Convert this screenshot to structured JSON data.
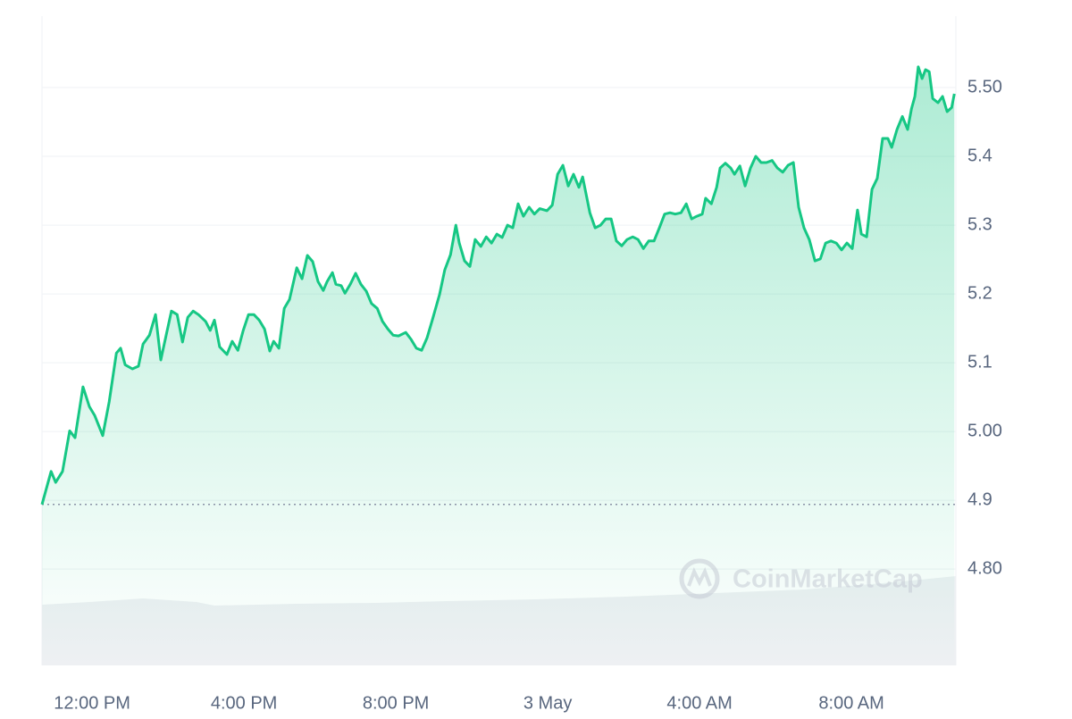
{
  "chart_data": {
    "type": "area",
    "watermark": "CoinMarketCap",
    "color": "#16c784",
    "grid": true,
    "xlim": [
      10.68,
      34.75
    ],
    "ylim": [
      4.66,
      5.6
    ],
    "xticks": [
      {
        "value": 12,
        "label": "12:00 PM"
      },
      {
        "value": 16,
        "label": "4:00 PM"
      },
      {
        "value": 20,
        "label": "8:00 PM"
      },
      {
        "value": 24,
        "label": "3 May"
      },
      {
        "value": 28,
        "label": "4:00 AM"
      },
      {
        "value": 32,
        "label": "8:00 AM"
      }
    ],
    "yticks": [
      {
        "value": 4.8,
        "label": "4.80"
      },
      4.9,
      {
        "value": 5,
        "label": "5.00"
      },
      5.1,
      5.2,
      5.3,
      5.4,
      {
        "value": 5.5,
        "label": "5.50"
      }
    ],
    "x": [
      10.68,
      10.92,
      11.04,
      11.22,
      11.41,
      11.55,
      11.76,
      11.93,
      12.07,
      12.28,
      12.45,
      12.64,
      12.75,
      12.87,
      13.06,
      13.22,
      13.34,
      13.51,
      13.67,
      13.81,
      13.95,
      14.09,
      14.24,
      14.38,
      14.52,
      14.66,
      14.8,
      14.99,
      15.11,
      15.22,
      15.36,
      15.55,
      15.69,
      15.84,
      15.98,
      16.12,
      16.26,
      16.4,
      16.54,
      16.68,
      16.78,
      16.92,
      17.06,
      17.2,
      17.39,
      17.53,
      17.67,
      17.81,
      17.95,
      18.09,
      18.19,
      18.33,
      18.42,
      18.56,
      18.66,
      18.8,
      18.94,
      19.08,
      19.22,
      19.36,
      19.51,
      19.65,
      19.79,
      19.93,
      20.07,
      20.26,
      20.4,
      20.54,
      20.68,
      20.82,
      20.96,
      21.15,
      21.29,
      21.44,
      21.58,
      21.67,
      21.81,
      21.95,
      22.09,
      22.24,
      22.38,
      22.52,
      22.66,
      22.8,
      22.94,
      23.08,
      23.22,
      23.36,
      23.51,
      23.65,
      23.79,
      23.98,
      24.12,
      24.26,
      24.4,
      24.54,
      24.68,
      24.82,
      24.92,
      25.11,
      25.25,
      25.39,
      25.53,
      25.67,
      25.81,
      25.95,
      26.09,
      26.24,
      26.38,
      26.52,
      26.66,
      26.8,
      26.94,
      27.08,
      27.22,
      27.36,
      27.51,
      27.65,
      27.79,
      27.93,
      28.07,
      28.16,
      28.31,
      28.45,
      28.54,
      28.68,
      28.82,
      28.92,
      29.06,
      29.2,
      29.34,
      29.48,
      29.62,
      29.76,
      29.91,
      30.05,
      30.19,
      30.33,
      30.47,
      30.61,
      30.75,
      30.89,
      31.04,
      31.18,
      31.32,
      31.46,
      31.6,
      31.74,
      31.88,
      32.02,
      32.16,
      32.26,
      32.4,
      32.54,
      32.68,
      32.82,
      32.96,
      33.06,
      33.2,
      33.34,
      33.48,
      33.58,
      33.67,
      33.76,
      33.86,
      33.95,
      34.05,
      34.14,
      34.28,
      34.4,
      34.52,
      34.64,
      34.71
    ],
    "values": [
      4.894,
      4.942,
      4.926,
      4.942,
      5.001,
      4.991,
      5.065,
      5.036,
      5.023,
      4.994,
      5.043,
      5.114,
      5.121,
      5.097,
      5.091,
      5.095,
      5.127,
      5.14,
      5.17,
      5.104,
      5.14,
      5.175,
      5.17,
      5.13,
      5.166,
      5.175,
      5.17,
      5.16,
      5.147,
      5.162,
      5.123,
      5.112,
      5.131,
      5.118,
      5.147,
      5.17,
      5.17,
      5.162,
      5.149,
      5.117,
      5.131,
      5.121,
      5.179,
      5.192,
      5.238,
      5.222,
      5.256,
      5.247,
      5.218,
      5.205,
      5.218,
      5.231,
      5.214,
      5.212,
      5.201,
      5.214,
      5.23,
      5.214,
      5.204,
      5.186,
      5.179,
      5.16,
      5.149,
      5.14,
      5.139,
      5.144,
      5.134,
      5.121,
      5.118,
      5.136,
      5.162,
      5.199,
      5.235,
      5.257,
      5.3,
      5.274,
      5.248,
      5.24,
      5.279,
      5.269,
      5.283,
      5.274,
      5.287,
      5.282,
      5.3,
      5.296,
      5.331,
      5.313,
      5.326,
      5.316,
      5.324,
      5.321,
      5.329,
      5.374,
      5.387,
      5.357,
      5.374,
      5.355,
      5.37,
      5.318,
      5.296,
      5.3,
      5.309,
      5.309,
      5.277,
      5.27,
      5.279,
      5.283,
      5.279,
      5.266,
      5.277,
      5.277,
      5.296,
      5.316,
      5.318,
      5.316,
      5.318,
      5.331,
      5.309,
      5.313,
      5.316,
      5.339,
      5.331,
      5.355,
      5.383,
      5.39,
      5.383,
      5.374,
      5.386,
      5.357,
      5.383,
      5.4,
      5.391,
      5.391,
      5.394,
      5.383,
      5.377,
      5.387,
      5.391,
      5.326,
      5.296,
      5.279,
      5.248,
      5.251,
      5.274,
      5.277,
      5.274,
      5.264,
      5.274,
      5.266,
      5.322,
      5.287,
      5.283,
      5.352,
      5.368,
      5.426,
      5.426,
      5.413,
      5.439,
      5.458,
      5.439,
      5.469,
      5.487,
      5.53,
      5.513,
      5.526,
      5.523,
      5.484,
      5.478,
      5.487,
      5.465,
      5.471,
      5.491
    ]
  }
}
